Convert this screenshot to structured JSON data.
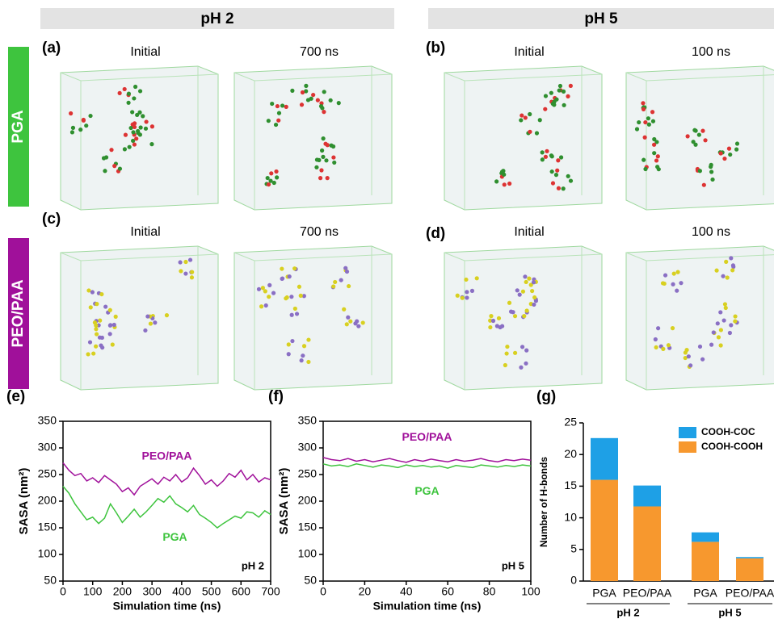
{
  "figure": {
    "columns": [
      {
        "title": "pH 2"
      },
      {
        "title": "pH 5"
      }
    ],
    "rows": [
      {
        "label": "PGA",
        "color": "#3ec43e"
      },
      {
        "label": "PEO/PAA",
        "color": "#a0109a"
      }
    ],
    "panels": [
      {
        "label": "(a)",
        "frames": [
          "Initial",
          "700 ns"
        ]
      },
      {
        "label": "(b)",
        "frames": [
          "Initial",
          "100 ns"
        ]
      },
      {
        "label": "(c)",
        "frames": [
          "Initial",
          "700 ns"
        ]
      },
      {
        "label": "(d)",
        "frames": [
          "Initial",
          "100 ns"
        ]
      }
    ]
  },
  "chart_data": [
    {
      "type": "line",
      "panel_label": "(e)",
      "annotation": "pH 2",
      "x_label": "Simulation time (ns)",
      "y_label": "SASA (nm²)",
      "x": [
        0,
        20,
        40,
        60,
        80,
        100,
        120,
        140,
        160,
        180,
        200,
        220,
        240,
        260,
        280,
        300,
        320,
        340,
        360,
        380,
        400,
        420,
        440,
        460,
        480,
        500,
        520,
        540,
        560,
        580,
        600,
        620,
        640,
        660,
        680,
        700
      ],
      "series": [
        {
          "name": "PEO/PAA",
          "color": "#a0109a",
          "values": [
            272,
            258,
            248,
            252,
            238,
            244,
            235,
            248,
            240,
            232,
            218,
            225,
            212,
            228,
            235,
            242,
            232,
            245,
            238,
            250,
            236,
            244,
            262,
            248,
            232,
            240,
            228,
            238,
            252,
            245,
            258,
            240,
            250,
            236,
            244,
            240
          ]
        },
        {
          "name": "PGA",
          "color": "#3ec43e",
          "values": [
            228,
            215,
            195,
            180,
            165,
            170,
            158,
            168,
            195,
            178,
            160,
            172,
            185,
            170,
            180,
            192,
            205,
            198,
            210,
            195,
            188,
            180,
            192,
            175,
            168,
            160,
            150,
            158,
            165,
            172,
            168,
            180,
            178,
            170,
            182,
            175
          ]
        }
      ],
      "xlim": [
        0,
        700
      ],
      "xticks": [
        0,
        100,
        200,
        300,
        400,
        500,
        600,
        700
      ],
      "ylim": [
        50,
        350
      ],
      "yticks": [
        50,
        100,
        150,
        200,
        250,
        300,
        350
      ]
    },
    {
      "type": "line",
      "panel_label": "(f)",
      "annotation": "pH 5",
      "x_label": "Simulation time (ns)",
      "y_label": "SASA (nm²)",
      "x": [
        0,
        4,
        8,
        12,
        16,
        20,
        24,
        28,
        32,
        36,
        40,
        44,
        48,
        52,
        56,
        60,
        64,
        68,
        72,
        76,
        80,
        84,
        88,
        92,
        96,
        100
      ],
      "series": [
        {
          "name": "PEO/PAA",
          "color": "#a0109a",
          "values": [
            282,
            278,
            276,
            280,
            275,
            278,
            274,
            277,
            280,
            276,
            273,
            278,
            275,
            279,
            276,
            274,
            278,
            275,
            277,
            280,
            276,
            274,
            278,
            276,
            279,
            277
          ]
        },
        {
          "name": "PGA",
          "color": "#3ec43e",
          "values": [
            270,
            266,
            268,
            265,
            270,
            267,
            264,
            268,
            266,
            263,
            268,
            265,
            267,
            264,
            266,
            262,
            267,
            265,
            263,
            268,
            266,
            264,
            267,
            265,
            268,
            266
          ]
        }
      ],
      "xlim": [
        0,
        100
      ],
      "xticks": [
        0,
        20,
        40,
        60,
        80,
        100
      ],
      "ylim": [
        50,
        350
      ],
      "yticks": [
        50,
        100,
        150,
        200,
        250,
        300,
        350
      ]
    },
    {
      "type": "stacked_bar",
      "panel_label": "(g)",
      "y_label": "Number of H-bonds",
      "categories": [
        "PGA",
        "PEO/PAA",
        "PGA",
        "PEO/PAA"
      ],
      "group_labels": [
        "pH 2",
        "pH 5"
      ],
      "series": [
        {
          "name": "COOH-COOH",
          "color": "#f7982e",
          "values": [
            16,
            11.8,
            6.2,
            3.6
          ]
        },
        {
          "name": "COOH-COC",
          "color": "#1ea0e6",
          "values": [
            6.6,
            3.3,
            1.5,
            0.2
          ]
        }
      ],
      "ylim": [
        0,
        25
      ],
      "yticks": [
        0,
        5,
        10,
        15,
        20,
        25
      ],
      "legend": "top-right"
    }
  ]
}
